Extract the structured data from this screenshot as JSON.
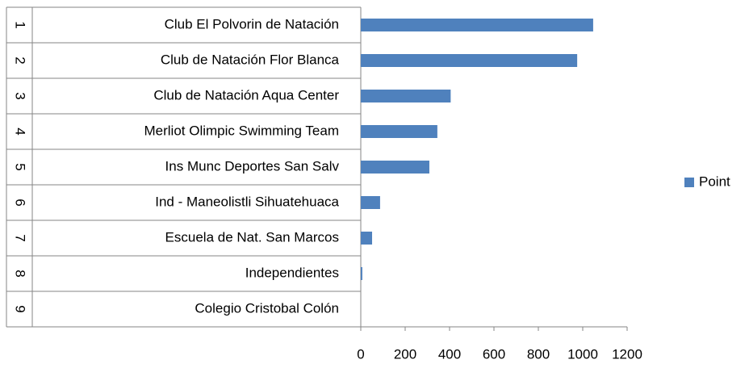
{
  "chart_data": {
    "type": "bar",
    "orientation": "horizontal",
    "ranks": [
      1,
      2,
      3,
      4,
      5,
      6,
      7,
      8,
      9
    ],
    "categories": [
      "Club El Polvorin de Natación",
      "Club de Natación Flor Blanca",
      "Club de Natación Aqua Center",
      "Merliot Olimpic Swimming Team",
      "Ins Munc Deportes San Salv",
      "Ind - Maneolistli Sihuatehuaca",
      "Escuela de Nat. San Marcos",
      "Independientes",
      "Colegio Cristobal Colón"
    ],
    "series": [
      {
        "name": "Point",
        "color": "#4f81bd",
        "values": [
          1047,
          975,
          405,
          345,
          309,
          87,
          51,
          7,
          0
        ]
      }
    ],
    "xlim": [
      0,
      1200
    ],
    "xticks": [
      0,
      200,
      400,
      600,
      800,
      1000,
      1200
    ],
    "grid": false,
    "legend": "right"
  }
}
